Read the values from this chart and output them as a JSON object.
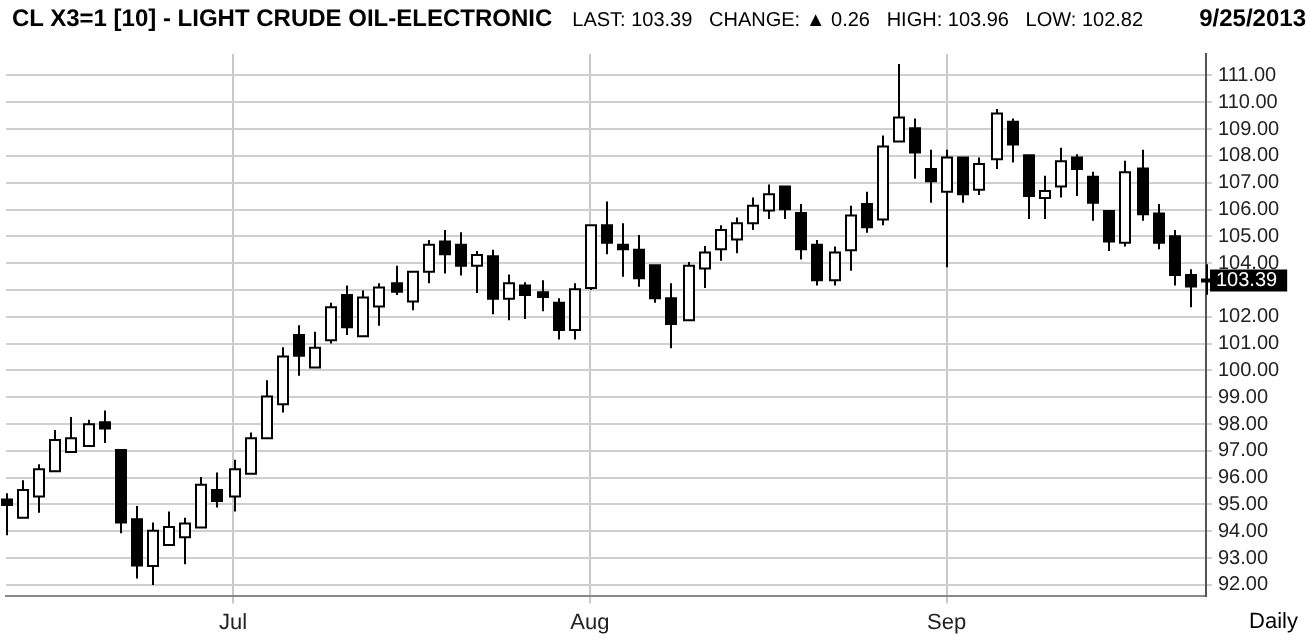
{
  "chart_data": {
    "type": "candlestick",
    "title": "CL X3=1 [10] - LIGHT CRUDE OIL-ELECTRONIC",
    "subtitle": "LAST: 103.39   CHANGE: ▲ 0.26   HIGH: 103.96   LOW: 102.82",
    "annotations": [
      "9/25/2013",
      "Daily",
      "103.39"
    ],
    "colors": [
      "#000000",
      "#ffffff",
      "#ffffff",
      "#ffffff",
      "#ffffff",
      "#ffffff",
      "#000000",
      "#000000",
      "#000000",
      "#ffffff",
      "#ffffff",
      "#ffffff",
      "#ffffff",
      "#000000",
      "#ffffff",
      "#ffffff",
      "#ffffff",
      "#ffffff",
      "#000000",
      "#ffffff",
      "#ffffff",
      "#000000",
      "#ffffff",
      "#ffffff",
      "#000000",
      "#ffffff",
      "#ffffff",
      "#000000",
      "#000000",
      "#ffffff",
      "#000000",
      "#ffffff",
      "#000000",
      "#000000",
      "#000000",
      "#ffffff",
      "#ffffff",
      "#000000",
      "#000000",
      "#000000",
      "#000000",
      "#000000",
      "#ffffff",
      "#ffffff",
      "#ffffff",
      "#ffffff",
      "#ffffff",
      "#ffffff",
      "#000000",
      "#000000",
      "#000000",
      "#ffffff",
      "#ffffff",
      "#000000",
      "#ffffff",
      "#ffffff",
      "#000000",
      "#000000",
      "#ffffff",
      "#000000",
      "#ffffff",
      "#ffffff",
      "#000000",
      "#000000",
      "#ffffff",
      "#ffffff",
      "#000000",
      "#000000",
      "#000000",
      "#ffffff",
      "#000000",
      "#000000",
      "#000000",
      "#000000",
      "#ffffff"
    ],
    "grid": true,
    "legend": false,
    "categories": [
      null,
      null,
      null,
      null,
      null,
      null,
      null,
      null,
      null,
      null,
      null,
      null,
      null,
      null,
      "Jul",
      null,
      null,
      null,
      null,
      null,
      null,
      null,
      null,
      null,
      null,
      null,
      null,
      null,
      null,
      null,
      null,
      null,
      null,
      null,
      null,
      null,
      "Aug",
      null,
      null,
      null,
      null,
      null,
      null,
      null,
      null,
      null,
      null,
      null,
      null,
      null,
      null,
      null,
      null,
      null,
      null,
      null,
      null,
      null,
      "Sep",
      null,
      null,
      null,
      null,
      null,
      null,
      null,
      null,
      null,
      null,
      null,
      null,
      null,
      null,
      null,
      null
    ],
    "ohlc": [
      [
        95.18,
        95.42,
        93.85,
        94.98
      ],
      [
        94.5,
        95.9,
        94.5,
        95.54
      ],
      [
        95.3,
        96.5,
        94.69,
        96.31
      ],
      [
        96.24,
        97.78,
        96.24,
        97.4
      ],
      [
        96.96,
        98.26,
        96.96,
        97.47
      ],
      [
        97.18,
        98.16,
        97.18,
        97.99
      ],
      [
        98.07,
        98.5,
        97.29,
        97.83
      ],
      [
        97.03,
        97.03,
        93.93,
        94.33
      ],
      [
        94.45,
        94.94,
        92.24,
        92.72
      ],
      [
        92.7,
        94.33,
        92.0,
        94.02
      ],
      [
        93.49,
        94.74,
        93.49,
        94.16
      ],
      [
        93.78,
        94.5,
        92.77,
        94.29
      ],
      [
        94.14,
        96.02,
        94.14,
        95.73
      ],
      [
        95.54,
        96.19,
        94.89,
        95.13
      ],
      [
        95.3,
        96.67,
        94.74,
        96.31
      ],
      [
        96.14,
        97.68,
        96.14,
        97.47
      ],
      [
        97.47,
        99.63,
        97.47,
        99.03
      ],
      [
        98.74,
        100.86,
        98.43,
        100.52
      ],
      [
        101.32,
        101.68,
        99.8,
        100.55
      ],
      [
        100.11,
        101.44,
        100.11,
        100.84
      ],
      [
        101.12,
        102.52,
        101.0,
        102.35
      ],
      [
        102.81,
        103.17,
        101.32,
        101.61
      ],
      [
        101.27,
        102.98,
        101.27,
        102.72
      ],
      [
        102.38,
        103.25,
        101.66,
        103.09
      ],
      [
        103.25,
        103.9,
        102.81,
        102.93
      ],
      [
        102.57,
        103.68,
        102.24,
        103.68
      ],
      [
        103.68,
        104.86,
        103.25,
        104.69
      ],
      [
        104.81,
        105.24,
        103.61,
        104.33
      ],
      [
        104.69,
        105.15,
        103.54,
        103.9
      ],
      [
        103.9,
        104.45,
        102.89,
        104.3
      ],
      [
        104.26,
        104.5,
        102.09,
        102.67
      ],
      [
        102.67,
        103.58,
        101.87,
        103.25
      ],
      [
        103.17,
        103.29,
        101.92,
        102.81
      ],
      [
        102.91,
        103.36,
        102.21,
        102.74
      ],
      [
        102.52,
        102.69,
        101.15,
        101.51
      ],
      [
        101.51,
        103.25,
        101.15,
        103.03
      ],
      [
        103.07,
        105.41,
        103.0,
        105.41
      ],
      [
        105.41,
        106.3,
        104.33,
        104.76
      ],
      [
        104.69,
        105.49,
        103.49,
        104.52
      ],
      [
        104.5,
        105.05,
        103.12,
        103.44
      ],
      [
        103.92,
        103.92,
        102.52,
        102.69
      ],
      [
        102.69,
        103.25,
        100.83,
        101.73
      ],
      [
        101.87,
        104.04,
        101.87,
        103.9
      ],
      [
        103.8,
        104.64,
        103.07,
        104.4
      ],
      [
        104.52,
        105.41,
        104.09,
        105.24
      ],
      [
        104.88,
        105.7,
        104.37,
        105.49
      ],
      [
        105.49,
        106.45,
        105.24,
        106.14
      ],
      [
        105.96,
        106.93,
        105.65,
        106.57
      ],
      [
        106.86,
        106.86,
        105.65,
        106.01
      ],
      [
        105.87,
        106.21,
        104.14,
        104.52
      ],
      [
        104.69,
        104.86,
        103.17,
        103.36
      ],
      [
        103.36,
        104.62,
        103.17,
        104.4
      ],
      [
        104.48,
        106.14,
        103.72,
        105.78
      ],
      [
        106.21,
        106.66,
        105.13,
        105.34
      ],
      [
        105.63,
        108.76,
        105.41,
        108.35
      ],
      [
        108.54,
        111.43,
        108.54,
        109.43
      ],
      [
        109.03,
        109.39,
        107.15,
        108.13
      ],
      [
        107.51,
        108.23,
        106.25,
        107.05
      ],
      [
        106.66,
        108.23,
        103.85,
        107.94
      ],
      [
        107.94,
        107.94,
        106.25,
        106.57
      ],
      [
        106.74,
        107.94,
        106.54,
        107.7
      ],
      [
        107.87,
        109.75,
        107.51,
        109.58
      ],
      [
        109.27,
        109.39,
        107.75,
        108.42
      ],
      [
        108.02,
        108.02,
        105.65,
        106.5
      ],
      [
        106.43,
        107.26,
        105.65,
        106.69
      ],
      [
        106.86,
        108.3,
        106.45,
        107.8
      ],
      [
        107.94,
        108.06,
        106.5,
        107.51
      ],
      [
        107.22,
        107.41,
        105.58,
        106.25
      ],
      [
        105.94,
        105.94,
        104.45,
        104.81
      ],
      [
        104.76,
        107.82,
        104.62,
        107.39
      ],
      [
        107.53,
        108.23,
        105.58,
        105.82
      ],
      [
        105.85,
        106.21,
        104.52,
        104.76
      ],
      [
        105.0,
        105.24,
        103.17,
        103.56
      ],
      [
        103.56,
        103.77,
        102.35,
        103.13
      ],
      [
        103.38,
        103.96,
        102.82,
        103.39
      ]
    ],
    "ylim": [
      91.6,
      111.8
    ],
    "yticks": [
      {
        "value": 92,
        "label": "92.00"
      },
      {
        "value": 93,
        "label": "93.00"
      },
      {
        "value": 94,
        "label": "94.00"
      },
      {
        "value": 95,
        "label": "95.00"
      },
      {
        "value": 96,
        "label": "96.00"
      },
      {
        "value": 97,
        "label": "97.00"
      },
      {
        "value": 98,
        "label": "98.00"
      },
      {
        "value": 99,
        "label": "99.00"
      },
      {
        "value": 100,
        "label": "100.00"
      },
      {
        "value": 101,
        "label": "101.00"
      },
      {
        "value": 102,
        "label": "102.00"
      },
      {
        "value": 103,
        "label": null
      },
      {
        "value": 104,
        "label": "104.00"
      },
      {
        "value": 105,
        "label": "105.00"
      },
      {
        "value": 106,
        "label": "106.00"
      },
      {
        "value": 107,
        "label": "107.00"
      },
      {
        "value": 108,
        "label": "108.00"
      },
      {
        "value": 109,
        "label": "109.00"
      },
      {
        "value": 110,
        "label": "110.00"
      },
      {
        "value": 111,
        "label": "111.00"
      }
    ]
  }
}
